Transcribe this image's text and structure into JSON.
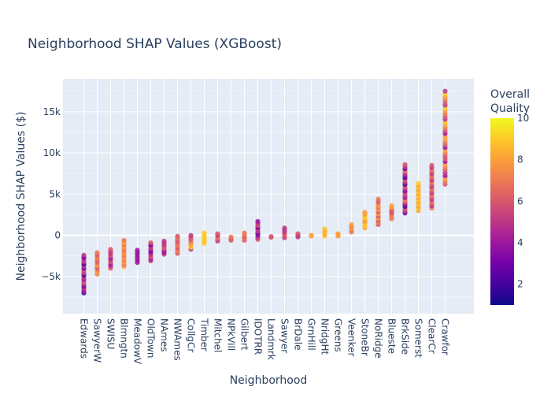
{
  "chart_data": {
    "type": "scatter",
    "title": "Neighborhood SHAP Values (XGBoost)",
    "xlabel": "Neighborhood",
    "ylabel": "Neighborhood SHAP Values ($)",
    "ylim": [
      -9500,
      19000
    ],
    "yticks": [
      -5000,
      0,
      5000,
      10000,
      15000
    ],
    "ytick_labels": [
      "−5k",
      "0",
      "5k",
      "10k",
      "15k"
    ],
    "colorbar": {
      "title": [
        "Overall",
        "Quality"
      ],
      "range": [
        1,
        10
      ],
      "ticks": [
        2,
        4,
        6,
        8,
        10
      ],
      "colorscale": [
        "#0d0887",
        "#46039f",
        "#7201a8",
        "#9c179e",
        "#bd3786",
        "#d8576b",
        "#ed7953",
        "#fb9f3a",
        "#fdca26",
        "#f0f921"
      ]
    },
    "grid": true,
    "categories": [
      {
        "name": "Edwards",
        "min": -7000,
        "max": -2400,
        "q": [
          2,
          3,
          4,
          5,
          5,
          5,
          6
        ]
      },
      {
        "name": "SawyerW",
        "min": -4700,
        "max": -2100,
        "q": [
          6,
          7,
          7,
          7,
          8
        ]
      },
      {
        "name": "SWISU",
        "min": -4000,
        "max": -1700,
        "q": [
          4,
          5,
          5,
          6,
          6
        ]
      },
      {
        "name": "Blmngtn",
        "min": -3800,
        "max": -600,
        "q": [
          7,
          7,
          8,
          8
        ]
      },
      {
        "name": "MeadowV",
        "min": -3300,
        "max": -1800,
        "q": [
          3,
          4,
          4,
          5
        ]
      },
      {
        "name": "OldTown",
        "min": -3100,
        "max": -900,
        "q": [
          3,
          4,
          5,
          5,
          6
        ]
      },
      {
        "name": "NAmes",
        "min": -2300,
        "max": -700,
        "q": [
          4,
          5,
          5,
          6
        ]
      },
      {
        "name": "NWAmes",
        "min": -2200,
        "max": -100,
        "q": [
          6,
          6,
          7,
          7
        ]
      },
      {
        "name": "CollgCr",
        "min": -1700,
        "max": 0,
        "q": [
          5,
          6,
          7,
          8,
          9
        ]
      },
      {
        "name": "Timber",
        "min": -1000,
        "max": 300,
        "q": [
          7,
          8,
          8,
          9
        ]
      },
      {
        "name": "Mitchel",
        "min": -700,
        "max": 200,
        "q": [
          5,
          6,
          6,
          7
        ]
      },
      {
        "name": "NPkVill",
        "min": -600,
        "max": -200,
        "q": [
          6,
          6,
          7
        ]
      },
      {
        "name": "Gilbert",
        "min": -600,
        "max": 300,
        "q": [
          6,
          7,
          7
        ]
      },
      {
        "name": "IDOTRR",
        "min": -500,
        "max": 1700,
        "q": [
          3,
          4,
          5,
          5,
          6
        ]
      },
      {
        "name": "Landmrk",
        "min": -250,
        "max": -150,
        "q": [
          6
        ]
      },
      {
        "name": "Sawyer",
        "min": -300,
        "max": 900,
        "q": [
          5,
          5,
          6
        ]
      },
      {
        "name": "BrDale",
        "min": -200,
        "max": 200,
        "q": [
          5,
          6
        ]
      },
      {
        "name": "GrnHill",
        "min": -100,
        "max": 0,
        "q": [
          8
        ]
      },
      {
        "name": "NridgHt",
        "min": -100,
        "max": 800,
        "q": [
          8,
          9,
          9
        ]
      },
      {
        "name": "Greens",
        "min": -100,
        "max": 200,
        "q": [
          8
        ]
      },
      {
        "name": "Veenker",
        "min": 400,
        "max": 1300,
        "q": [
          7,
          8
        ]
      },
      {
        "name": "StoneBr",
        "min": 900,
        "max": 2800,
        "q": [
          8,
          9
        ]
      },
      {
        "name": "NoRidge",
        "min": 1300,
        "max": 4400,
        "q": [
          6,
          7,
          8
        ]
      },
      {
        "name": "Blueste",
        "min": 2000,
        "max": 3600,
        "q": [
          6,
          7,
          8
        ]
      },
      {
        "name": "BrkSide",
        "min": 2700,
        "max": 8600,
        "q": [
          2,
          3,
          4,
          5,
          5,
          6,
          6,
          7
        ]
      },
      {
        "name": "Somerst",
        "min": 3000,
        "max": 6300,
        "q": [
          7,
          8,
          8,
          9
        ]
      },
      {
        "name": "ClearCr",
        "min": 3300,
        "max": 8500,
        "q": [
          5,
          6,
          6,
          7,
          7,
          8
        ]
      },
      {
        "name": "Crawfor",
        "min": 6200,
        "max": 17500,
        "q": [
          4,
          5,
          6,
          6,
          7,
          7,
          8,
          8,
          9
        ]
      }
    ]
  }
}
